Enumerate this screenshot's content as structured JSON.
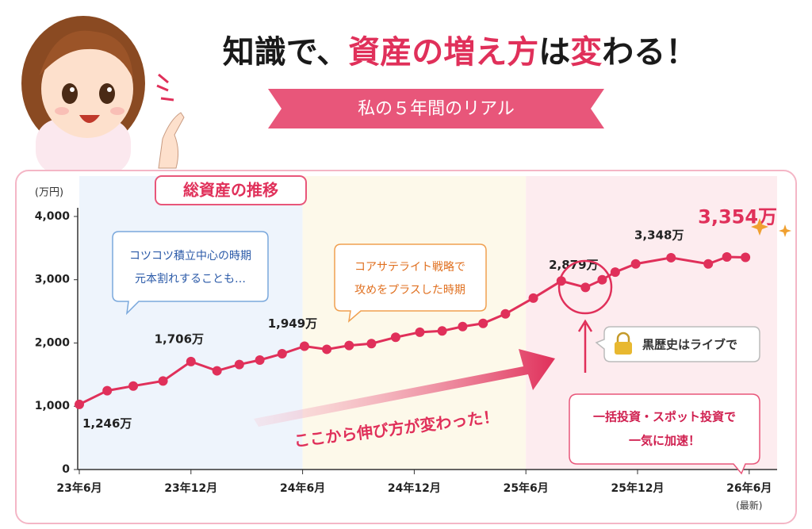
{
  "chart_data": {
    "type": "line",
    "title_parts": [
      {
        "text": "知識で、",
        "color": "#1a1a1a"
      },
      {
        "text": "資産の増え方",
        "color": "#e0305a"
      },
      {
        "text": "は",
        "color": "#1a1a1a"
      },
      {
        "text": "変",
        "color": "#e0305a"
      },
      {
        "text": "わる！",
        "color": "#1a1a1a"
      }
    ],
    "subtitle": "私の５年間のリアル",
    "chart_label": "総資産の推移",
    "y_unit": "(万円)",
    "x": [
      0,
      1.5,
      2.9,
      4.5,
      6,
      7.4,
      8.6,
      9.7,
      10.9,
      12.1,
      13.3,
      14.5,
      15.7,
      17,
      18.3,
      19.5,
      20.6,
      21.7,
      22.9,
      24.4,
      25.9,
      27.2,
      28.1,
      28.8,
      29.9,
      31.8,
      33.8,
      34.8,
      35.8
    ],
    "values": [
      1030,
      1246,
      1320,
      1400,
      1706,
      1560,
      1660,
      1730,
      1830,
      1949,
      1900,
      1960,
      1990,
      2090,
      2170,
      2190,
      2260,
      2310,
      2460,
      2710,
      2980,
      2879,
      3000,
      3120,
      3250,
      3348,
      3250,
      3360,
      3354
    ],
    "value_labels": [
      null,
      "1,246万",
      null,
      null,
      "1,706万",
      null,
      null,
      null,
      null,
      "1,949万",
      null,
      null,
      null,
      null,
      null,
      null,
      null,
      null,
      null,
      null,
      null,
      "2,879万",
      null,
      null,
      null,
      "3,348万",
      null,
      null,
      "3,354万"
    ],
    "color": "#e0305a",
    "xlim": [
      0,
      37.5
    ],
    "xticks": [
      {
        "value": 0,
        "label": "23年6月"
      },
      {
        "value": 6,
        "label": "23年12月"
      },
      {
        "value": 12,
        "label": "24年6月"
      },
      {
        "value": 18,
        "label": "24年12月"
      },
      {
        "value": 24,
        "label": "25年6月"
      },
      {
        "value": 30,
        "label": "25年12月"
      },
      {
        "value": 36,
        "label": "26年6月"
      }
    ],
    "latest_note": "(最新)",
    "ylim": [
      0,
      4300
    ],
    "yticks": [
      0,
      {
        "value": 1000,
        "label": "1,000"
      },
      {
        "value": 2000,
        "label": "2,000"
      },
      {
        "value": 3000,
        "label": "3,000"
      },
      {
        "value": 4000,
        "label": "4,000"
      }
    ],
    "annotations": {
      "phase1": [
        "コツコツ積立中心の時期",
        "元本割れすることも…"
      ],
      "phase2": [
        "コアサテライト戦略で",
        "攻めをプラスした時期"
      ],
      "secret": "黒歴史はライブで",
      "arrow_text": "ここから伸び方が変わった！",
      "phase3": [
        "一括投資・スポット投資で",
        "一気に加速！"
      ]
    }
  }
}
